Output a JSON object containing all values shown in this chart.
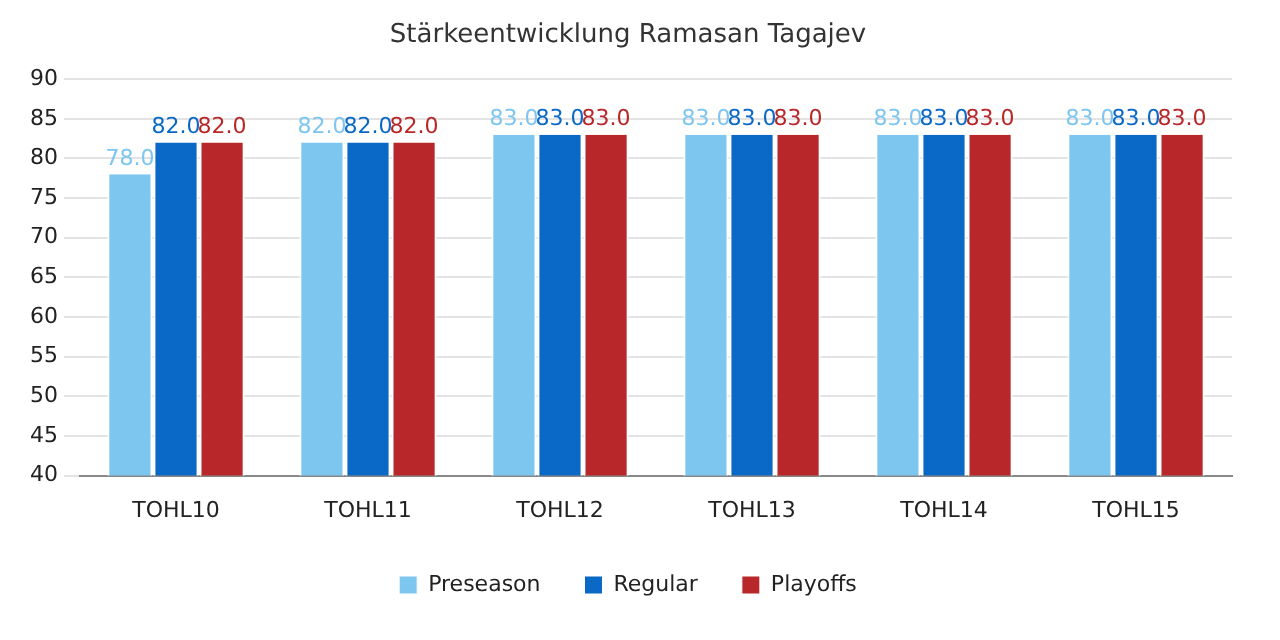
{
  "chart_data": {
    "type": "bar",
    "title": "Stärkeentwicklung Ramasan Tagajev",
    "categories": [
      "TOHL10",
      "TOHL11",
      "TOHL12",
      "TOHL13",
      "TOHL14",
      "TOHL15"
    ],
    "series": [
      {
        "name": "Preseason",
        "color": "#7cc6f0",
        "values": [
          78,
          82,
          83,
          83,
          83,
          83
        ],
        "value_labels": [
          "78.0",
          "82.0",
          "83.0",
          "83.0",
          "83.0",
          "83.0"
        ]
      },
      {
        "name": "Regular",
        "color": "#0a68c6",
        "values": [
          82,
          82,
          83,
          83,
          83,
          83
        ],
        "value_labels": [
          "82.0",
          "82.0",
          "83.0",
          "83.0",
          "83.0",
          "83.0"
        ]
      },
      {
        "name": "Playoffs",
        "color": "#b8282a",
        "values": [
          82,
          82,
          83,
          83,
          83,
          83
        ],
        "value_labels": [
          "82.0",
          "82.0",
          "83.0",
          "83.0",
          "83.0",
          "83.0"
        ]
      }
    ],
    "ylim": [
      40,
      90
    ],
    "yticks": [
      40,
      45,
      50,
      55,
      60,
      65,
      70,
      75,
      80,
      85,
      90
    ],
    "grid": "y",
    "legend": "bottom"
  }
}
